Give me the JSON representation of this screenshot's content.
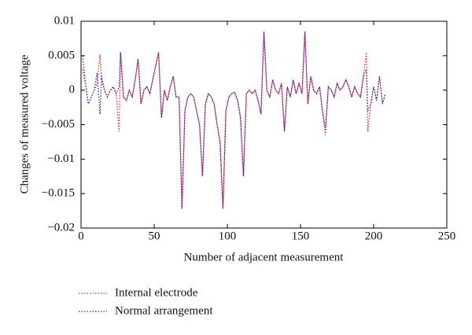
{
  "chart_data": {
    "type": "line",
    "x_label": "Number of adjacent measurement",
    "y_label": "Changes of measured voltage",
    "x": [
      1,
      3,
      5,
      7,
      9,
      11,
      13,
      14,
      16,
      18,
      20,
      22,
      24,
      26,
      27,
      29,
      31,
      33,
      35,
      37,
      39,
      41,
      43,
      45,
      47,
      49,
      51,
      53,
      55,
      57,
      59,
      61,
      63,
      65,
      67,
      69,
      71,
      73,
      75,
      77,
      79,
      81,
      83,
      85,
      87,
      89,
      91,
      93,
      95,
      97,
      99,
      101,
      103,
      105,
      107,
      109,
      111,
      113,
      115,
      117,
      119,
      121,
      123,
      125,
      127,
      129,
      131,
      133,
      135,
      137,
      139,
      141,
      143,
      145,
      147,
      149,
      151,
      153,
      155,
      157,
      159,
      161,
      163,
      165,
      167,
      169,
      171,
      173,
      175,
      177,
      179,
      181,
      183,
      185,
      187,
      189,
      191,
      193,
      195,
      196,
      198,
      200,
      202,
      204,
      206,
      208
    ],
    "series": [
      {
        "name": "Internal electrode",
        "color": "#e8282a",
        "values": [
          0.003,
          0.001,
          -0.002,
          -0.001,
          0,
          0.001,
          0.0052,
          0.0015,
          0,
          -0.001,
          0,
          0.0005,
          -0.0005,
          -0.006,
          0.0055,
          -0.001,
          -0.0015,
          0,
          -0.001,
          0.0015,
          0.0045,
          -0.002,
          0,
          0.0005,
          -0.0005,
          0.0015,
          0.0035,
          0.0055,
          -0.004,
          0,
          -0.0015,
          0.0005,
          0.002,
          -0.001,
          -0.001,
          -0.0172,
          -0.003,
          -0.001,
          -0.0005,
          -0.001,
          -0.003,
          -0.005,
          -0.0125,
          -0.002,
          -0.0005,
          -0.001,
          -0.002,
          -0.005,
          -0.0075,
          -0.0172,
          -0.003,
          -0.001,
          -0.0005,
          -0.0003,
          -0.0015,
          -0.004,
          -0.0125,
          -0.0005,
          0,
          -0.0005,
          0,
          -0.0015,
          -0.0035,
          0.0085,
          0,
          -0.001,
          0.0015,
          0,
          -0.0005,
          0.001,
          -0.006,
          0.0005,
          -0.001,
          0.0015,
          -0.0005,
          0.001,
          -0.0005,
          0.0085,
          -0.002,
          0.002,
          0,
          -0.0005,
          0.0005,
          -0.003,
          -0.0065,
          0.0005,
          0,
          -0.001,
          0.001,
          0,
          0.0005,
          0.0015,
          0.0005,
          -0.001,
          0.0005,
          -0.0005,
          -0.001,
          0.002,
          0.0055,
          -0.006,
          -0.002,
          0.0005,
          -0.0015,
          0.002,
          -0.002,
          -0.0005
        ]
      },
      {
        "name": "Normal arrangement",
        "color": "#2b2bb8",
        "values": [
          0.005,
          0.001,
          -0.002,
          -0.001,
          0,
          0.0025,
          -0.0035,
          0.002,
          0,
          -0.001,
          0,
          0.0005,
          -0.0005,
          0.0005,
          0.0055,
          -0.001,
          -0.0015,
          0,
          -0.001,
          0.0015,
          0.0045,
          -0.002,
          0,
          0.0005,
          -0.0005,
          0.0015,
          0.0035,
          0.0055,
          -0.004,
          0,
          -0.0015,
          0.0005,
          0.002,
          -0.001,
          -0.001,
          -0.0172,
          -0.003,
          -0.001,
          -0.0005,
          -0.001,
          -0.003,
          -0.005,
          -0.0125,
          -0.002,
          -0.0005,
          -0.001,
          -0.002,
          -0.005,
          -0.0075,
          -0.0172,
          -0.003,
          -0.001,
          -0.0005,
          -0.0003,
          -0.0015,
          -0.004,
          -0.0125,
          -0.0005,
          0,
          -0.0005,
          0,
          -0.0015,
          -0.0035,
          0.0085,
          0,
          -0.001,
          0.0015,
          0,
          -0.0005,
          0.001,
          -0.006,
          0.0005,
          -0.001,
          0.0015,
          -0.0005,
          0.001,
          -0.0005,
          0.0085,
          -0.002,
          0.002,
          0,
          -0.0005,
          0.0005,
          -0.003,
          -0.0055,
          0.0005,
          0,
          -0.001,
          0.001,
          0,
          0.0005,
          0.0015,
          0.0005,
          -0.001,
          0.0005,
          -0.0005,
          -0.001,
          0.002,
          0.003,
          -0.003,
          -0.002,
          0.0005,
          -0.0015,
          0.002,
          -0.002,
          -0.0005
        ]
      }
    ],
    "xlim": [
      0,
      250
    ],
    "xticks": [
      0,
      50,
      100,
      150,
      200,
      250
    ],
    "ylim": [
      -0.02,
      0.01
    ],
    "yticks": [
      {
        "value": -0.02,
        "label": "−0.02"
      },
      {
        "value": -0.015,
        "label": "−0.015"
      },
      {
        "value": -0.01,
        "label": "−0.01"
      },
      {
        "value": -0.005,
        "label": "−0.005"
      },
      0,
      0.005,
      0.01
    ],
    "line_style": "dotted",
    "legend_position": "below"
  }
}
